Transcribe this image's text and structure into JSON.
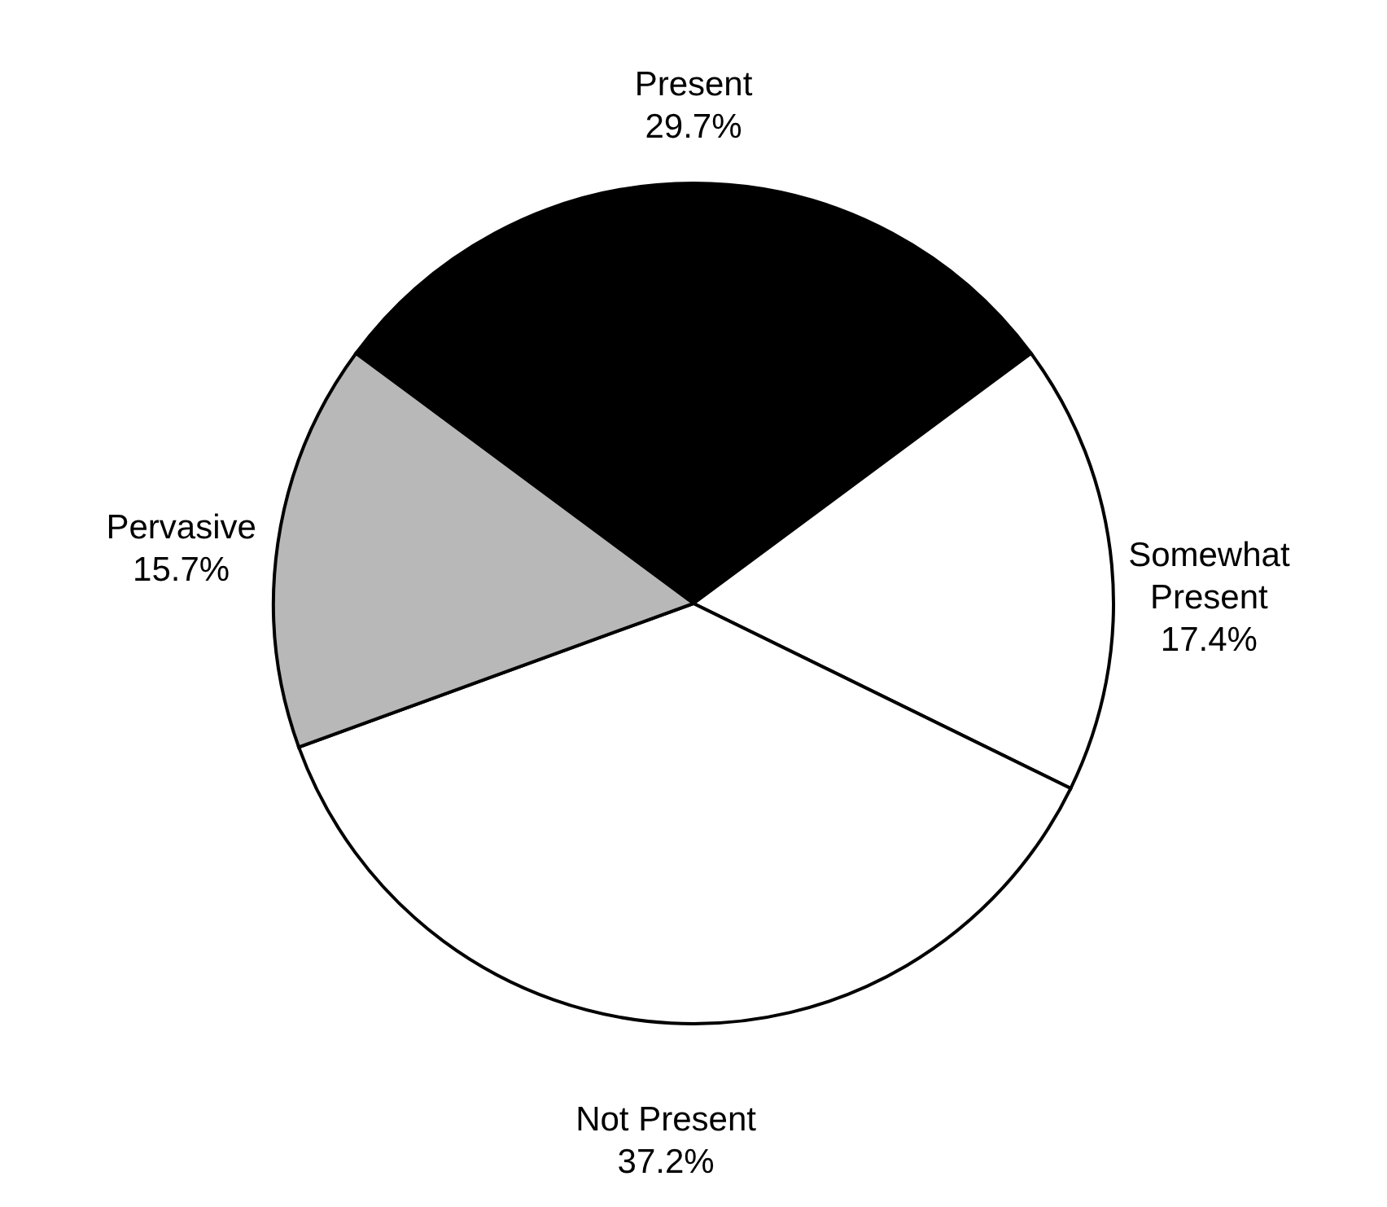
{
  "chart_data": {
    "type": "pie",
    "categories": [
      "Present",
      "Somewhat Present",
      "Not Present",
      "Pervasive"
    ],
    "values": [
      29.7,
      17.4,
      37.2,
      15.7
    ],
    "colors": [
      "#000000",
      "#ffffff",
      "#ffffff",
      "#b8b8b8"
    ],
    "value_labels": [
      "29.7%",
      "17.4%",
      "37.2%",
      "15.7%"
    ]
  }
}
